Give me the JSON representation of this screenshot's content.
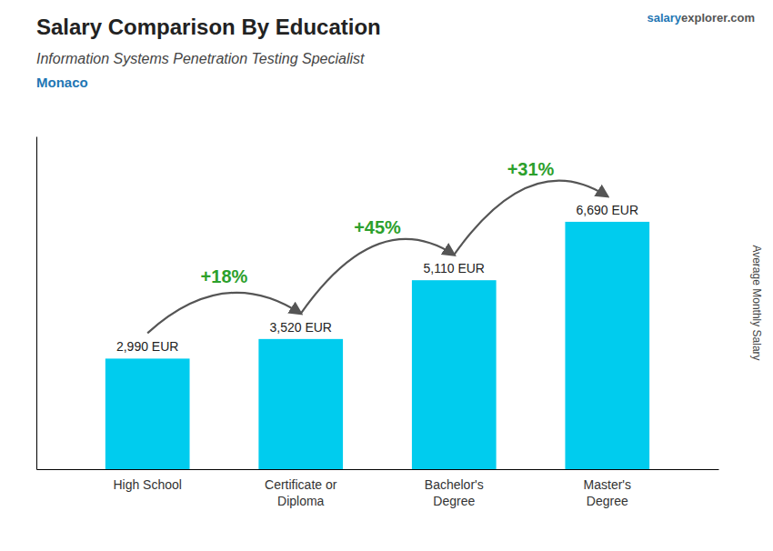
{
  "chart_data": {
    "type": "bar",
    "title": "Salary Comparison By Education",
    "subtitle": [
      "Information Systems Penetration Testing Specialist",
      "Monaco"
    ],
    "source": [
      "salary",
      "explorer",
      ".com"
    ],
    "ylabel": "Average Monthly Salary",
    "categories": [
      "High School",
      "Certificate or\nDiploma",
      "Bachelor's\nDegree",
      "Master's\nDegree"
    ],
    "values": [
      2990,
      3520,
      5110,
      6690
    ],
    "value_labels": [
      "2,990 EUR",
      "3,520 EUR",
      "5,110 EUR",
      "6,690 EUR"
    ],
    "data_labels": true,
    "annotations": [
      "+18%",
      "+45%",
      "+31%"
    ],
    "color": "#00ccee",
    "ylim": [
      0,
      9000
    ],
    "tick_labels": "x"
  }
}
